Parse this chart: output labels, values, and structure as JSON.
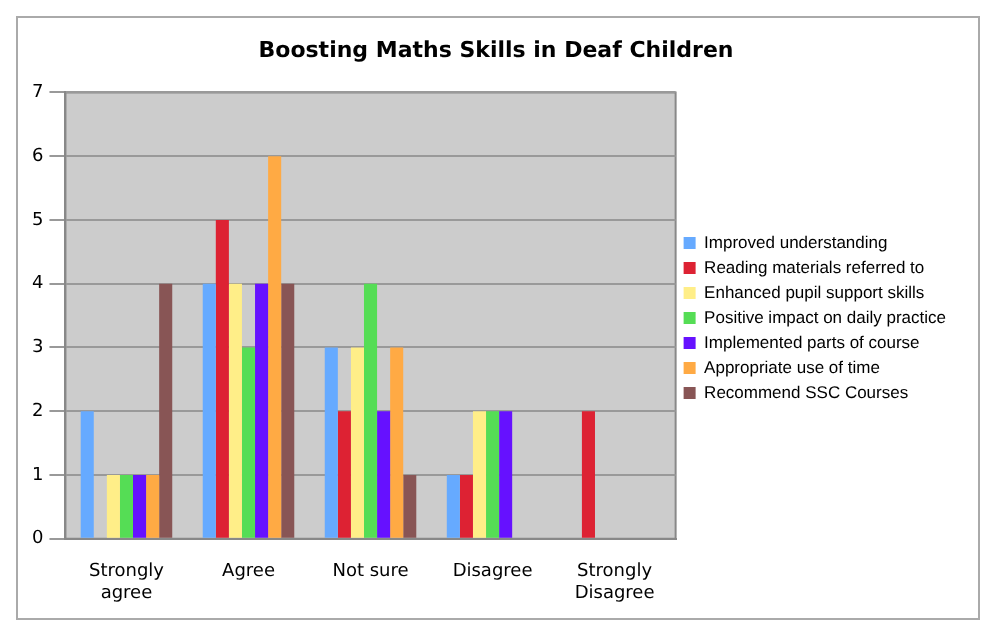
{
  "chart_data": {
    "type": "bar",
    "title": "Boosting Maths Skills in Deaf Children",
    "categories": [
      "Strongly agree",
      "Agree",
      "Not sure",
      "Disagree",
      "Strongly Disagree"
    ],
    "series": [
      {
        "name": "Improved understanding",
        "color": "#66aaff",
        "values": [
          2,
          4,
          3,
          1,
          0
        ]
      },
      {
        "name": "Reading materials referred to",
        "color": "#dd2233",
        "values": [
          0,
          5,
          2,
          1,
          2
        ]
      },
      {
        "name": "Enhanced pupil support skills",
        "color": "#ffee88",
        "values": [
          1,
          4,
          3,
          2,
          0
        ]
      },
      {
        "name": "Positive impact on daily practice",
        "color": "#55dd55",
        "values": [
          1,
          3,
          4,
          2,
          0
        ]
      },
      {
        "name": "Implemented parts of course",
        "color": "#6611ff",
        "values": [
          1,
          4,
          2,
          2,
          0
        ]
      },
      {
        "name": "Appropriate use of time",
        "color": "#ffaa44",
        "values": [
          1,
          6,
          3,
          0,
          0
        ]
      },
      {
        "name": "Recommend SSC Courses",
        "color": "#885555",
        "values": [
          4,
          4,
          1,
          0,
          0
        ]
      }
    ],
    "ylim": [
      0,
      7
    ],
    "yticks": [
      0,
      1,
      2,
      3,
      4,
      5,
      6,
      7
    ],
    "grid": "y",
    "legend": "right"
  }
}
